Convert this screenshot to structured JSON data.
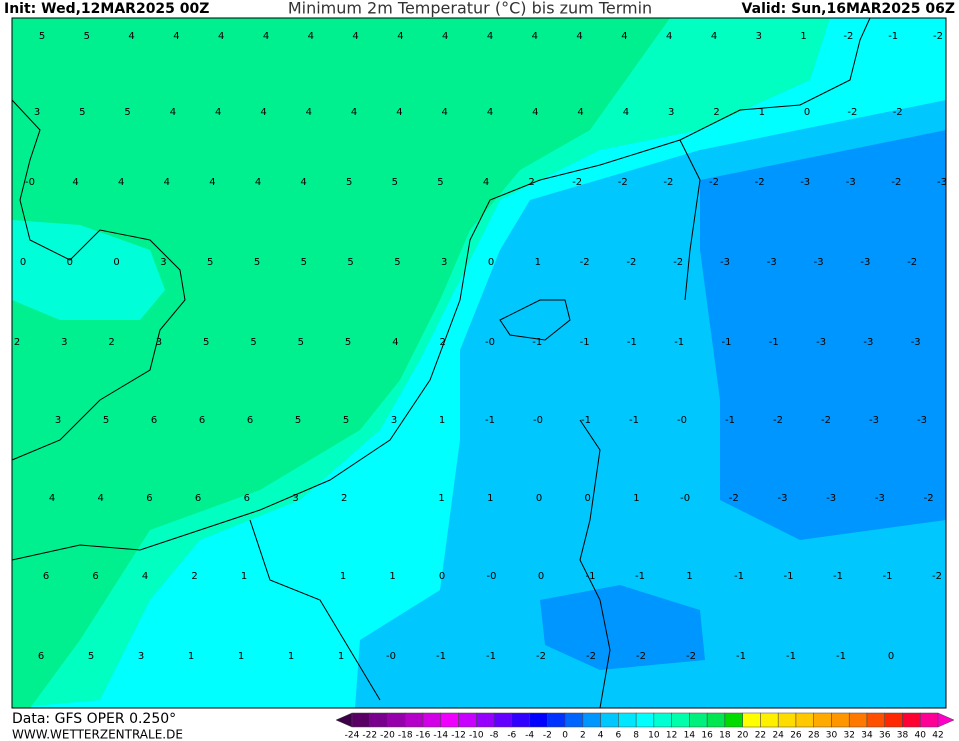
{
  "header": {
    "init": "Init: Wed,12MAR2025 00Z",
    "title": "Minimum 2m Temperatur (°C) bis zum Termin",
    "valid": "Valid: Sun,16MAR2025 06Z"
  },
  "map": {
    "rows": [
      [
        "5",
        "5",
        "4",
        "4",
        "4",
        "4",
        "4",
        "4",
        "4",
        "4",
        "4",
        "4",
        "4",
        "4",
        "4",
        "4",
        "3",
        "1",
        "-2",
        "-1",
        "-2"
      ],
      [
        "3",
        "5",
        "5",
        "4",
        "4",
        "4",
        "4",
        "4",
        "4",
        "4",
        "4",
        "4",
        "4",
        "4",
        "3",
        "2",
        "1",
        "0",
        "-2",
        "-2",
        null
      ],
      [
        "-0",
        "4",
        "4",
        "4",
        "4",
        "4",
        "4",
        "5",
        "5",
        "5",
        "4",
        "2",
        "-2",
        "-2",
        "-2",
        "-2",
        "-2",
        "-3",
        "-3",
        "-2",
        "-3"
      ],
      [
        "0",
        "0",
        "0",
        "3",
        "5",
        "5",
        "5",
        "5",
        "5",
        "3",
        "0",
        "1",
        "-2",
        "-2",
        "-2",
        "-3",
        "-3",
        "-3",
        "-3",
        "-2"
      ],
      [
        "2",
        "3",
        "2",
        "3",
        "5",
        "5",
        "5",
        "5",
        "4",
        "2",
        "-0",
        "-1",
        "-1",
        "-1",
        "-1",
        "-1",
        "-1",
        "-3",
        "-3",
        "-3"
      ],
      [
        "3",
        "5",
        "6",
        "6",
        "6",
        "5",
        "5",
        "3",
        "1",
        "-1",
        "-0",
        "-1",
        "-1",
        "-0",
        "-1",
        "-2",
        "-2",
        "-3",
        "-3"
      ],
      [
        "4",
        "4",
        "6",
        "6",
        "6",
        "3",
        "2",
        null,
        "1",
        "1",
        "0",
        "0",
        "1",
        "-0",
        "-2",
        "-3",
        "-3",
        "-3",
        "-2"
      ],
      [
        "6",
        "6",
        "4",
        "2",
        "1",
        null,
        "1",
        "1",
        "0",
        "-0",
        "0",
        "-1",
        "-1",
        "1",
        "-1",
        "-1",
        "-1",
        "-1",
        "-2"
      ],
      [
        "6",
        "5",
        "3",
        "1",
        "1",
        "1",
        "1",
        "-0",
        "-1",
        "-1",
        "-2",
        "-2",
        "-2",
        "-2",
        "-1",
        "-1",
        "-1",
        "0"
      ]
    ]
  },
  "legend": {
    "labels": [
      -24,
      -22,
      -20,
      -18,
      -16,
      -14,
      -12,
      -10,
      -8,
      -6,
      -4,
      -2,
      0,
      2,
      4,
      6,
      8,
      10,
      12,
      14,
      16,
      18,
      20,
      22,
      24,
      26,
      28,
      30,
      32,
      34,
      36,
      38,
      40,
      42
    ],
    "colors": [
      "#3c0046",
      "#5a0064",
      "#78008c",
      "#9600aa",
      "#b400c8",
      "#d200e6",
      "#f000ff",
      "#c800ff",
      "#9600ff",
      "#6400ff",
      "#3200ff",
      "#0000ff",
      "#0032ff",
      "#0064ff",
      "#0096ff",
      "#00c8ff",
      "#00e6ff",
      "#00ffff",
      "#00ffd2",
      "#00ffaa",
      "#00f07d",
      "#00e650",
      "#00dc00",
      "#ffff00",
      "#fff000",
      "#ffdc00",
      "#ffc800",
      "#ffaa00",
      "#ff9600",
      "#ff7800",
      "#ff5000",
      "#ff2800",
      "#ff0032",
      "#ff0096",
      "#ff00c8"
    ]
  },
  "footer": {
    "data": "Data: GFS OPER 0.250°",
    "site": "WWW.WETTERZENTRALE.DE"
  }
}
